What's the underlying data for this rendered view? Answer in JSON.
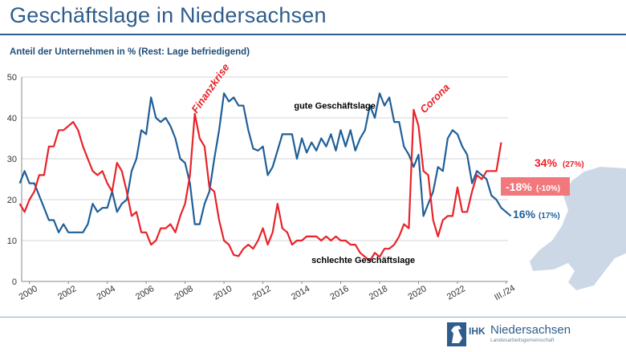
{
  "page": {
    "title": "Geschäftslage in Niedersachsen",
    "subtitle": "Anteil der Unternehmen in % (Rest: Lage befriedigend)"
  },
  "logo": {
    "ihk": "IHK",
    "name": "Niedersachsen",
    "sub": "Landesarbeitsgemeinschaft"
  },
  "colors": {
    "title": "#2e5d8c",
    "good": "#1f5f99",
    "bad": "#e8232a",
    "saldo_box": "#f2787c",
    "horse": "#ccd8e6"
  },
  "chart_data": {
    "type": "line",
    "ylim": [
      0,
      50
    ],
    "yticks": [
      0,
      10,
      20,
      30,
      40,
      50
    ],
    "xlim": [
      1999.6,
      2024.6
    ],
    "xticks": [
      {
        "value": 2000,
        "label": "2000"
      },
      {
        "value": 2002,
        "label": "2002"
      },
      {
        "value": 2004,
        "label": "2004"
      },
      {
        "value": 2006,
        "label": "2006"
      },
      {
        "value": 2008,
        "label": "2008"
      },
      {
        "value": 2010,
        "label": "2010"
      },
      {
        "value": 2012,
        "label": "2012"
      },
      {
        "value": 2014,
        "label": "2014"
      },
      {
        "value": 2016,
        "label": "2016"
      },
      {
        "value": 2018,
        "label": "2018"
      },
      {
        "value": 2020,
        "label": "2020"
      },
      {
        "value": 2022,
        "label": "2022"
      },
      {
        "value": 2024.5,
        "label": "III./24"
      }
    ],
    "grid": true,
    "legend": "none",
    "series": [
      {
        "name": "gute Geschäftslage",
        "color": "#1f5f99",
        "points": [
          [
            1999.5,
            24
          ],
          [
            1999.75,
            27
          ],
          [
            2000,
            24
          ],
          [
            2000.25,
            24
          ],
          [
            2000.5,
            21
          ],
          [
            2000.75,
            18
          ],
          [
            2001,
            15
          ],
          [
            2001.25,
            15
          ],
          [
            2001.5,
            12
          ],
          [
            2001.75,
            14
          ],
          [
            2002,
            12
          ],
          [
            2002.25,
            12
          ],
          [
            2002.5,
            12
          ],
          [
            2002.75,
            12
          ],
          [
            2003,
            14
          ],
          [
            2003.25,
            19
          ],
          [
            2003.5,
            17
          ],
          [
            2003.75,
            18
          ],
          [
            2004,
            18
          ],
          [
            2004.25,
            22
          ],
          [
            2004.5,
            17
          ],
          [
            2004.75,
            19
          ],
          [
            2005,
            20
          ],
          [
            2005.25,
            27
          ],
          [
            2005.5,
            30
          ],
          [
            2005.75,
            37
          ],
          [
            2006,
            36
          ],
          [
            2006.25,
            45
          ],
          [
            2006.5,
            40
          ],
          [
            2006.75,
            39
          ],
          [
            2007,
            40
          ],
          [
            2007.25,
            38
          ],
          [
            2007.5,
            35
          ],
          [
            2007.75,
            30
          ],
          [
            2008,
            29
          ],
          [
            2008.25,
            24
          ],
          [
            2008.5,
            14
          ],
          [
            2008.75,
            14
          ],
          [
            2009,
            19
          ],
          [
            2009.25,
            22
          ],
          [
            2009.5,
            30
          ],
          [
            2009.75,
            37
          ],
          [
            2010,
            46
          ],
          [
            2010.25,
            44
          ],
          [
            2010.5,
            45
          ],
          [
            2010.75,
            43
          ],
          [
            2011,
            43
          ],
          [
            2011.25,
            37
          ],
          [
            2011.5,
            32.5
          ],
          [
            2011.75,
            32
          ],
          [
            2012,
            33
          ],
          [
            2012.25,
            26
          ],
          [
            2012.5,
            28
          ],
          [
            2012.75,
            32
          ],
          [
            2013,
            36
          ],
          [
            2013.25,
            36
          ],
          [
            2013.5,
            36
          ],
          [
            2013.75,
            30
          ],
          [
            2014,
            35
          ],
          [
            2014.25,
            31.5
          ],
          [
            2014.5,
            34
          ],
          [
            2014.75,
            32
          ],
          [
            2015,
            35
          ],
          [
            2015.25,
            33
          ],
          [
            2015.5,
            36
          ],
          [
            2015.75,
            32
          ],
          [
            2016,
            37
          ],
          [
            2016.25,
            33
          ],
          [
            2016.5,
            37
          ],
          [
            2016.75,
            32
          ],
          [
            2017,
            35
          ],
          [
            2017.25,
            37
          ],
          [
            2017.5,
            43
          ],
          [
            2017.75,
            40
          ],
          [
            2018,
            46
          ],
          [
            2018.25,
            43
          ],
          [
            2018.5,
            45
          ],
          [
            2018.75,
            39
          ],
          [
            2019,
            39
          ],
          [
            2019.25,
            33
          ],
          [
            2019.5,
            31
          ],
          [
            2019.75,
            28
          ],
          [
            2020,
            31
          ],
          [
            2020.25,
            16
          ],
          [
            2020.5,
            19
          ],
          [
            2020.75,
            22
          ],
          [
            2021,
            28
          ],
          [
            2021.25,
            27
          ],
          [
            2021.5,
            35
          ],
          [
            2021.75,
            37
          ],
          [
            2022,
            36
          ],
          [
            2022.25,
            33
          ],
          [
            2022.5,
            31
          ],
          [
            2022.75,
            24
          ],
          [
            2023,
            27
          ],
          [
            2023.25,
            26
          ],
          [
            2023.5,
            25
          ],
          [
            2023.75,
            21
          ],
          [
            2024,
            20
          ],
          [
            2024.25,
            18
          ],
          [
            2024.5,
            17
          ],
          [
            2024.75,
            16
          ]
        ]
      },
      {
        "name": "schlechte Geschäftslage",
        "color": "#e8232a",
        "points": [
          [
            1999.5,
            19
          ],
          [
            1999.75,
            17
          ],
          [
            2000,
            20
          ],
          [
            2000.25,
            22
          ],
          [
            2000.5,
            26
          ],
          [
            2000.75,
            26
          ],
          [
            2001,
            33
          ],
          [
            2001.25,
            33
          ],
          [
            2001.5,
            37
          ],
          [
            2001.75,
            37
          ],
          [
            2002,
            38
          ],
          [
            2002.25,
            39
          ],
          [
            2002.5,
            37
          ],
          [
            2002.75,
            33
          ],
          [
            2003,
            30
          ],
          [
            2003.25,
            27
          ],
          [
            2003.5,
            26
          ],
          [
            2003.75,
            27
          ],
          [
            2004,
            24
          ],
          [
            2004.25,
            22
          ],
          [
            2004.5,
            29
          ],
          [
            2004.75,
            27
          ],
          [
            2005,
            22
          ],
          [
            2005.25,
            16
          ],
          [
            2005.5,
            17
          ],
          [
            2005.75,
            12
          ],
          [
            2006,
            12
          ],
          [
            2006.25,
            9
          ],
          [
            2006.5,
            10
          ],
          [
            2006.75,
            13
          ],
          [
            2007,
            13
          ],
          [
            2007.25,
            14
          ],
          [
            2007.5,
            12
          ],
          [
            2007.75,
            16
          ],
          [
            2008,
            19
          ],
          [
            2008.25,
            26
          ],
          [
            2008.5,
            41
          ],
          [
            2008.75,
            35
          ],
          [
            2009,
            33
          ],
          [
            2009.25,
            23
          ],
          [
            2009.5,
            22
          ],
          [
            2009.75,
            15
          ],
          [
            2010,
            10
          ],
          [
            2010.25,
            9
          ],
          [
            2010.5,
            6.5
          ],
          [
            2010.75,
            6.2
          ],
          [
            2011,
            8
          ],
          [
            2011.25,
            9
          ],
          [
            2011.5,
            8
          ],
          [
            2011.75,
            10
          ],
          [
            2012,
            13
          ],
          [
            2012.25,
            9
          ],
          [
            2012.5,
            12
          ],
          [
            2012.75,
            19
          ],
          [
            2013,
            13
          ],
          [
            2013.25,
            12
          ],
          [
            2013.5,
            9
          ],
          [
            2013.75,
            10
          ],
          [
            2014,
            10
          ],
          [
            2014.25,
            11
          ],
          [
            2014.5,
            11
          ],
          [
            2014.75,
            11
          ],
          [
            2015,
            10
          ],
          [
            2015.25,
            11
          ],
          [
            2015.5,
            10
          ],
          [
            2015.75,
            11
          ],
          [
            2016,
            10
          ],
          [
            2016.25,
            10
          ],
          [
            2016.5,
            9
          ],
          [
            2016.75,
            9
          ],
          [
            2017,
            7
          ],
          [
            2017.25,
            6
          ],
          [
            2017.5,
            5
          ],
          [
            2017.75,
            7
          ],
          [
            2018,
            6
          ],
          [
            2018.25,
            8
          ],
          [
            2018.5,
            8
          ],
          [
            2018.75,
            9
          ],
          [
            2019,
            11
          ],
          [
            2019.25,
            14
          ],
          [
            2019.5,
            13
          ],
          [
            2019.75,
            42
          ],
          [
            2020,
            38
          ],
          [
            2020.25,
            27
          ],
          [
            2020.5,
            26
          ],
          [
            2020.75,
            15
          ],
          [
            2021,
            11
          ],
          [
            2021.25,
            15
          ],
          [
            2021.5,
            16
          ],
          [
            2021.75,
            16
          ],
          [
            2022,
            23
          ],
          [
            2022.25,
            17
          ],
          [
            2022.5,
            17
          ],
          [
            2022.75,
            22
          ],
          [
            2023,
            26
          ],
          [
            2023.25,
            25
          ],
          [
            2023.5,
            27
          ],
          [
            2023.75,
            27
          ],
          [
            2024,
            27
          ],
          [
            2024.25,
            34
          ]
        ]
      }
    ],
    "annotations": [
      {
        "text": "Finanzkrise",
        "color": "#e8232a",
        "x": 2008.6,
        "y": 41,
        "rotate": -55
      },
      {
        "text": "Corona",
        "color": "#e8232a",
        "x": 2020.3,
        "y": 41,
        "rotate": -45
      },
      {
        "text": "gute Geschäftslage",
        "color": "#000000",
        "x": 2013.6,
        "y": 42.3,
        "rotate": 0
      },
      {
        "text": "schlechte Geschäftslage",
        "color": "#000000",
        "x": 2014.5,
        "y": 4.5,
        "rotate": 0
      }
    ],
    "endlabels": {
      "bad_value": "34%",
      "bad_prev": "(27%)",
      "saldo_value": "-18%",
      "saldo_prev": "(-10%)",
      "good_value": "16%",
      "good_prev": "(17%)"
    }
  }
}
